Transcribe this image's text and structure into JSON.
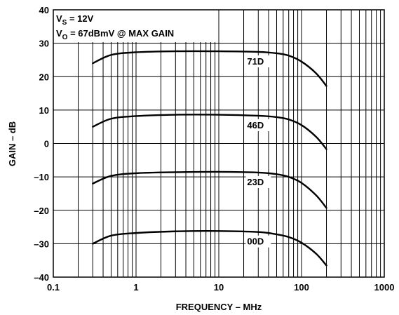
{
  "chart_data": {
    "type": "line",
    "xscale": "log",
    "xlim": [
      0.1,
      1000
    ],
    "ylim": [
      -40,
      40
    ],
    "xlabel": "FREQUENCY – MHz",
    "ylabel": "GAIN – dB",
    "xticks": [
      "0.1",
      "1",
      "10",
      "100",
      "1000"
    ],
    "yticks": [
      "–40",
      "–30",
      "–20",
      "–10",
      "0",
      "10",
      "20",
      "30",
      "40"
    ],
    "grid": true,
    "annotations": [
      {
        "main": "V",
        "sub": "S",
        "rest": " = 12V"
      },
      {
        "main": "V",
        "sub": "O",
        "rest": " = 67dBmV @ MAX GAIN"
      }
    ],
    "series": [
      {
        "name": "71D",
        "x": [
          0.3,
          0.5,
          1,
          3,
          10,
          30,
          50,
          70,
          100,
          150,
          200
        ],
        "y": [
          24,
          26.5,
          27.3,
          27.6,
          27.6,
          27.4,
          27,
          26.3,
          24.5,
          21,
          17.2
        ]
      },
      {
        "name": "46D",
        "x": [
          0.3,
          0.5,
          1,
          3,
          10,
          30,
          50,
          70,
          100,
          150,
          200
        ],
        "y": [
          5,
          7.4,
          8.2,
          8.6,
          8.6,
          8.3,
          7.9,
          7.2,
          5.5,
          2,
          -1.7
        ]
      },
      {
        "name": "23D",
        "x": [
          0.3,
          0.5,
          1,
          3,
          10,
          30,
          50,
          70,
          100,
          150,
          200
        ],
        "y": [
          -12,
          -9.7,
          -8.9,
          -8.6,
          -8.5,
          -8.7,
          -9.2,
          -10,
          -11.8,
          -15.5,
          -19.3
        ]
      },
      {
        "name": "00D",
        "x": [
          0.3,
          0.5,
          1,
          3,
          10,
          30,
          50,
          70,
          100,
          150,
          200
        ],
        "y": [
          -30,
          -27.6,
          -26.8,
          -26.3,
          -26.2,
          -26.5,
          -27.2,
          -28,
          -29.7,
          -33,
          -36.5
        ]
      }
    ]
  }
}
